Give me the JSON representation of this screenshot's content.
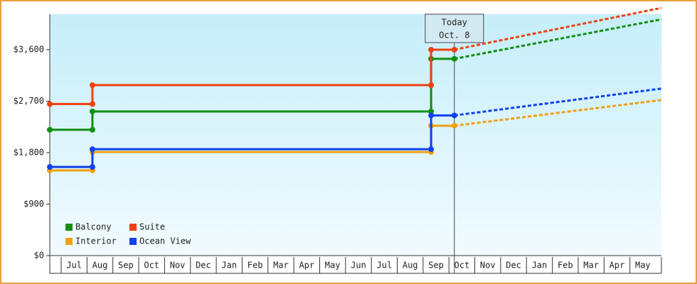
{
  "chart_data": {
    "type": "line",
    "categories": [
      "Jul",
      "Aug",
      "Sep",
      "Oct",
      "Nov",
      "Dec",
      "Jan",
      "Feb",
      "Mar",
      "Apr",
      "May",
      "Jun",
      "Jul",
      "Aug",
      "Sep",
      "Oct",
      "Nov",
      "Dec",
      "Jan",
      "Feb",
      "Mar",
      "Apr",
      "May"
    ],
    "xlim": [
      -0.44,
      23.22
    ],
    "ylim": [
      0,
      4220
    ],
    "yticks": [
      {
        "value": 0,
        "label": "$0"
      },
      {
        "value": 900,
        "label": "$900"
      },
      {
        "value": 1800,
        "label": "$1,800"
      },
      {
        "value": 2700,
        "label": "$2,700"
      },
      {
        "value": 3600,
        "label": "$3,600"
      }
    ],
    "x": [
      -0.44,
      1.21,
      1.21,
      14.31,
      14.31,
      15.21
    ],
    "forecast_x": [
      15.21,
      23.22
    ],
    "today": {
      "x": 15.21,
      "label": [
        "Today",
        "Oct. 8"
      ]
    },
    "series": [
      {
        "name": "Balcony",
        "color": "#109010",
        "values": [
          2200,
          2200,
          2520,
          2520,
          3440,
          3440
        ],
        "forecast_values": [
          3440,
          4130
        ]
      },
      {
        "name": "Suite",
        "color": "#f04010",
        "values": [
          2650,
          2650,
          2980,
          2980,
          3600,
          3600
        ],
        "forecast_values": [
          3600,
          4330
        ]
      },
      {
        "name": "Interior",
        "color": "#f0a010",
        "values": [
          1490,
          1490,
          1810,
          1810,
          2270,
          2270
        ],
        "forecast_values": [
          2270,
          2720
        ]
      },
      {
        "name": "Ocean View",
        "color": "#1040f0",
        "values": [
          1550,
          1550,
          1860,
          1860,
          2450,
          2450
        ],
        "forecast_values": [
          2450,
          2920
        ]
      }
    ]
  }
}
